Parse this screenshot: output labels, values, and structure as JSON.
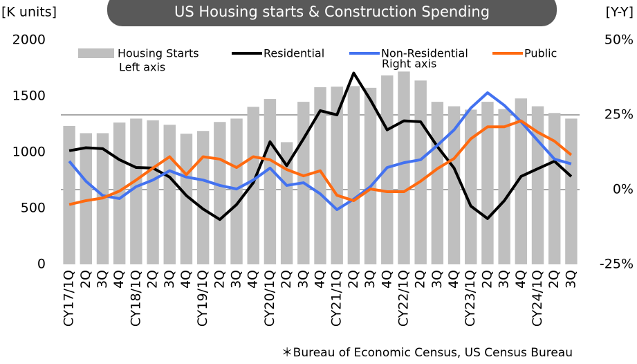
{
  "chart_data": {
    "type": "bar_line",
    "title": "US Housing starts & Construction Spending",
    "y_label": "[K units]",
    "y2_label": "[Y-Y]",
    "source": "＊Bureau of Economic Census, US Census Bureau",
    "annotations": [
      "Left axis",
      "Right axis"
    ],
    "categories": [
      "CY17/1Q",
      "2Q",
      "3Q",
      "4Q",
      "CY18/1Q",
      "2Q",
      "3Q",
      "4Q",
      "CY19/1Q",
      "2Q",
      "3Q",
      "4Q",
      "CY20/1Q",
      "2Q",
      "3Q",
      "4Q",
      "CY21/1Q",
      "2Q",
      "3Q",
      "4Q",
      "CY22/1Q",
      "2Q",
      "3Q",
      "4Q",
      "CY23/1Q",
      "2Q",
      "3Q",
      "4Q",
      "CY24/1Q",
      "2Q",
      "3Q"
    ],
    "ylim": [
      0,
      2000
    ],
    "yticks": [
      0,
      500,
      1000,
      1500,
      2000
    ],
    "y2lim": [
      -25,
      50
    ],
    "y2ticks": [
      {
        "value": -25,
        "label": "-25%"
      },
      {
        "value": 0,
        "label": "0%"
      },
      {
        "value": 25,
        "label": "25%"
      },
      {
        "value": 50,
        "label": "50%"
      }
    ],
    "grid": "y2",
    "series": [
      {
        "name": "Housing Starts",
        "type": "bar",
        "color": "#bfbfbf",
        "values": [
          1235,
          1170,
          1170,
          1265,
          1300,
          1285,
          1245,
          1165,
          1190,
          1270,
          1300,
          1405,
          1475,
          1090,
          1450,
          1580,
          1585,
          1590,
          1575,
          1685,
          1720,
          1640,
          1450,
          1410,
          1380,
          1450,
          1385,
          1480,
          1410,
          1350,
          1300
        ]
      },
      {
        "name": "Residential",
        "type": "line",
        "axis": "y2",
        "color": "#000000",
        "values": [
          13,
          14,
          13.7,
          10,
          7.4,
          7.2,
          4.2,
          -2,
          -6.5,
          -10,
          -5,
          2.3,
          16,
          8,
          17,
          26.4,
          25,
          39,
          30,
          20,
          23,
          22.7,
          14.4,
          7.2,
          -5.5,
          -9.7,
          -3.7,
          4.4,
          7,
          9.5,
          4.4
        ]
      },
      {
        "name": "Non-Residential",
        "type": "line",
        "axis": "y2",
        "color": "#4372f0",
        "values": [
          9.5,
          2.8,
          -2,
          -3,
          1,
          3.2,
          6.3,
          4.2,
          3.2,
          1.4,
          0.2,
          3.2,
          7.2,
          1.4,
          2.3,
          -1.4,
          -6.7,
          -3.2,
          1,
          7.4,
          9,
          10,
          14.8,
          20,
          27.3,
          32.4,
          28.2,
          22.7,
          16.4,
          10.2,
          8.6
        ]
      },
      {
        "name": "Public",
        "type": "line",
        "axis": "y2",
        "color": "#ff6a10",
        "values": [
          -5,
          -3.7,
          -2.8,
          -0.5,
          3.2,
          7.2,
          11,
          5,
          11,
          10.2,
          7.4,
          11,
          10,
          6.7,
          4.6,
          6.3,
          -1.9,
          -3.7,
          0.2,
          -0.7,
          -0.7,
          2.8,
          7,
          10.4,
          17,
          21,
          21,
          23,
          19.2,
          16.2,
          11.6
        ]
      }
    ]
  }
}
